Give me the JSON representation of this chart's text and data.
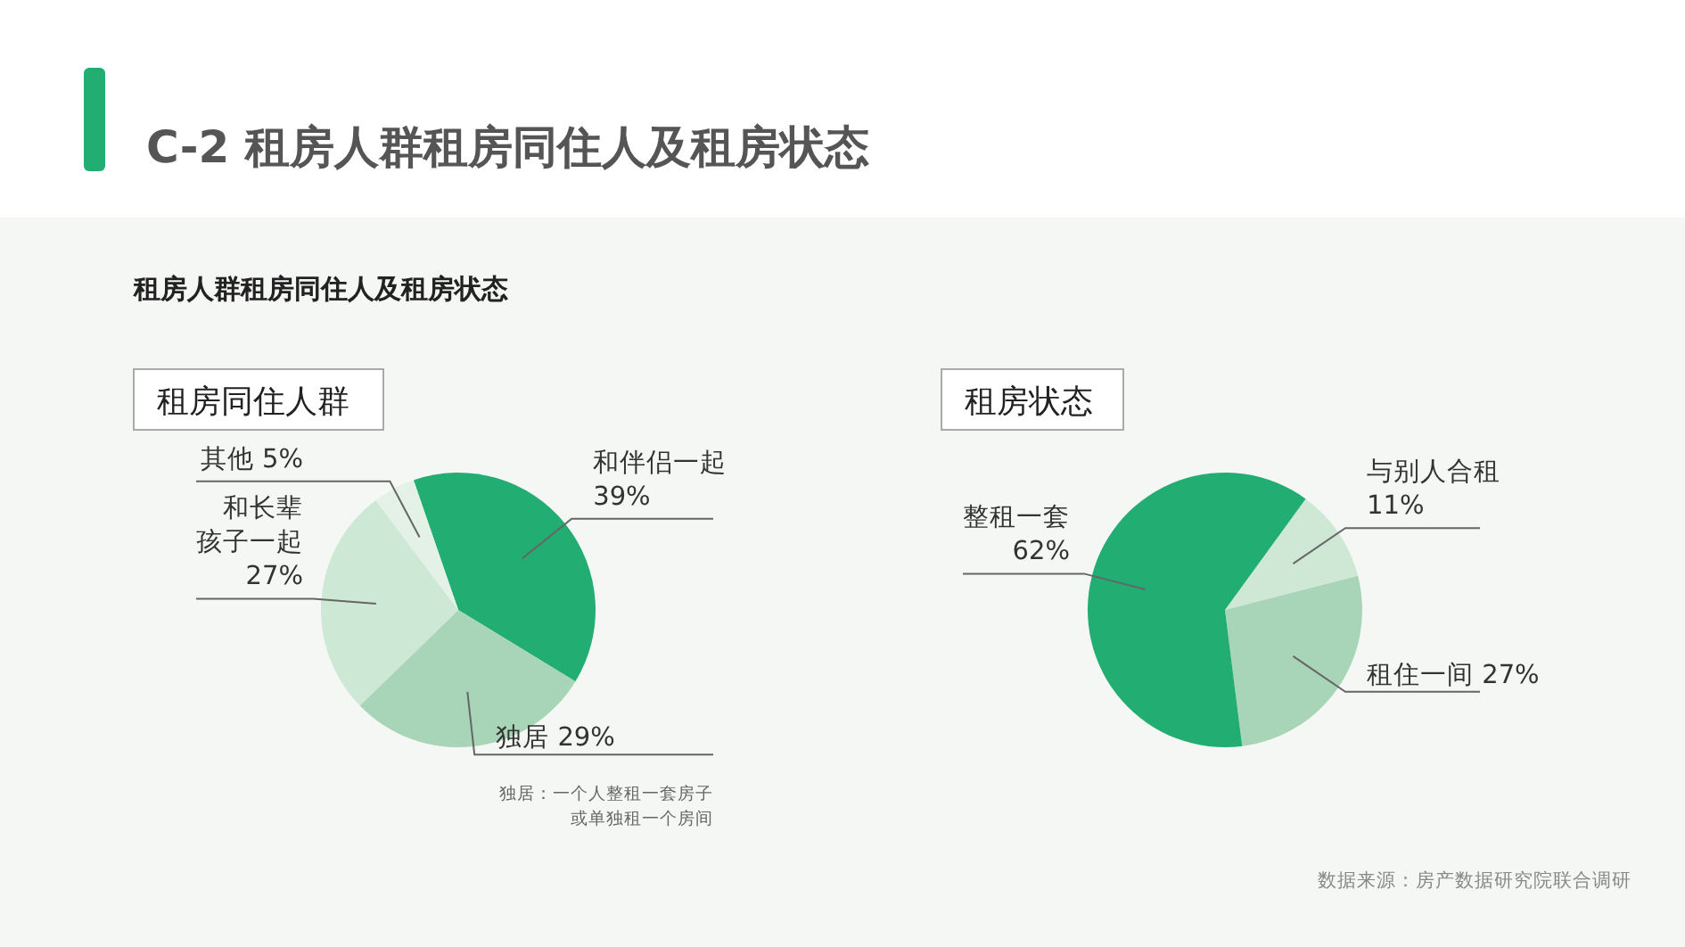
{
  "chart_data": [
    {
      "type": "pie",
      "title": "租房同住人群",
      "categories": [
        "和伴侣一起",
        "独居",
        "和长辈孩子一起",
        "其他"
      ],
      "values": [
        39,
        29,
        27,
        5
      ],
      "value_labels": [
        "39%",
        "29%",
        "27%",
        "5%"
      ],
      "colors": [
        "#22ad73",
        "#a8d5b7",
        "#cde8d5",
        "#e3f1e7"
      ],
      "annotations": [
        "C-2 租房人群租房同住人及租房状态",
        "租房人群租房同住人及租房状态",
        "独居：一个人整租一套房子或单独租一个房间"
      ]
    },
    {
      "type": "pie",
      "title": "租房状态",
      "categories": [
        "与别人合租",
        "租住一间",
        "整租一套"
      ],
      "values": [
        11,
        27,
        62
      ],
      "value_labels": [
        "11%",
        "27%",
        "62%"
      ],
      "colors": [
        "#cfe8d6",
        "#a8d5b7",
        "#22ad73"
      ],
      "annotations": [
        "数据来源：房产数据研究院联合调研"
      ]
    }
  ]
}
